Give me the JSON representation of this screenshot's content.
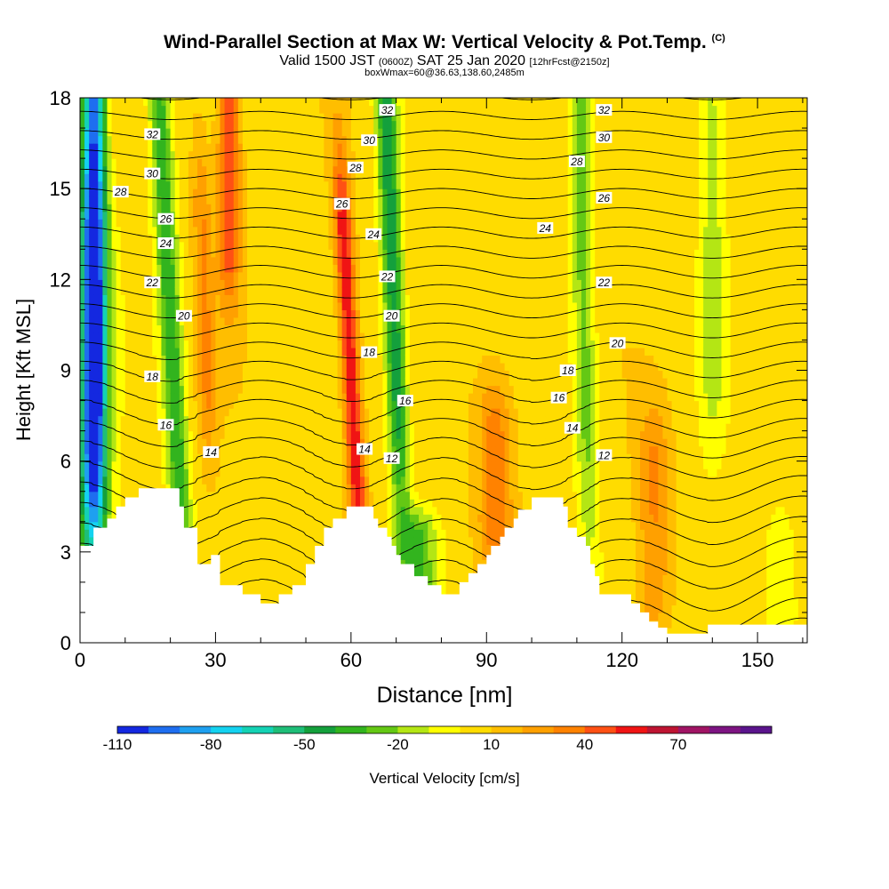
{
  "header": {
    "title_main": "Wind-Parallel Section at Max W: Vertical Velocity & Pot.Temp.",
    "title_copyright": "(C)",
    "valid_prefix": "Valid 1500 JST",
    "valid_utc": "(0600Z)",
    "valid_date": "SAT 25 Jan 2020",
    "valid_fcst": "[12hrFcst@2150z]",
    "box_info": "boxWmax=60@36.63,138.60,2485m"
  },
  "chart_data": {
    "type": "heatmap",
    "xlabel": "Distance [nm]",
    "ylabel": "Height [Kft MSL]",
    "xlim": [
      0,
      161
    ],
    "ylim": [
      0,
      18
    ],
    "x_ticks": [
      "0",
      "30",
      "60",
      "90",
      "120",
      "150"
    ],
    "y_ticks": [
      "0",
      "3",
      "6",
      "9",
      "12",
      "15",
      "18"
    ],
    "colorbar": {
      "label": "Vertical Velocity [cm/s]",
      "tick_labels": [
        "-110",
        "-80",
        "-50",
        "-20",
        "10",
        "40",
        "70"
      ],
      "levels": [
        -110,
        -100,
        -90,
        -80,
        -70,
        -60,
        -50,
        -40,
        -30,
        -20,
        -10,
        0,
        10,
        20,
        30,
        40,
        50,
        60,
        70,
        80,
        90
      ],
      "colors": [
        "#1428e0",
        "#1e6ef0",
        "#1ea0f0",
        "#14d2f0",
        "#14d2b4",
        "#1ebe78",
        "#14a03c",
        "#32b41e",
        "#64c814",
        "#b4e614",
        "#ffff00",
        "#ffdc00",
        "#ffbe00",
        "#ffa000",
        "#ff8200",
        "#ff5014",
        "#f01414",
        "#be1432",
        "#a01464",
        "#7d1482",
        "#5a148c"
      ]
    },
    "terrain_kft": [
      [
        0,
        3.2
      ],
      [
        2,
        3.2
      ],
      [
        3,
        3.8
      ],
      [
        5,
        3.8
      ],
      [
        6,
        4.1
      ],
      [
        7,
        4.1
      ],
      [
        8,
        4.5
      ],
      [
        9,
        4.5
      ],
      [
        10,
        4.8
      ],
      [
        12,
        4.8
      ],
      [
        13,
        5.1
      ],
      [
        20,
        5.1
      ],
      [
        22,
        4.5
      ],
      [
        23,
        3.8
      ],
      [
        25,
        3.8
      ],
      [
        26,
        2.6
      ],
      [
        28,
        2.6
      ],
      [
        29,
        2.9
      ],
      [
        30,
        2.9
      ],
      [
        31,
        1.9
      ],
      [
        35,
        1.9
      ],
      [
        36,
        1.6
      ],
      [
        39,
        1.6
      ],
      [
        40,
        1.3
      ],
      [
        43,
        1.3
      ],
      [
        44,
        1.6
      ],
      [
        46,
        1.6
      ],
      [
        47,
        1.9
      ],
      [
        49,
        1.9
      ],
      [
        50,
        2.6
      ],
      [
        51,
        2.6
      ],
      [
        52,
        3.2
      ],
      [
        53,
        3.2
      ],
      [
        54,
        3.8
      ],
      [
        55,
        3.8
      ],
      [
        56,
        4.1
      ],
      [
        58,
        4.1
      ],
      [
        59,
        4.5
      ],
      [
        64,
        4.5
      ],
      [
        65,
        4.1
      ],
      [
        66,
        3.8
      ],
      [
        68,
        3.5
      ],
      [
        69,
        3.2
      ],
      [
        70,
        2.9
      ],
      [
        71,
        2.6
      ],
      [
        73,
        2.6
      ],
      [
        74,
        2.2
      ],
      [
        76,
        2.2
      ],
      [
        77,
        1.9
      ],
      [
        79,
        1.9
      ],
      [
        80,
        1.6
      ],
      [
        83,
        1.6
      ],
      [
        84,
        2.0
      ],
      [
        86,
        2.3
      ],
      [
        88,
        2.6
      ],
      [
        90,
        2.9
      ],
      [
        91,
        3.2
      ],
      [
        93,
        3.5
      ],
      [
        94,
        3.8
      ],
      [
        96,
        4.1
      ],
      [
        97,
        4.4
      ],
      [
        100,
        4.8
      ],
      [
        106,
        4.8
      ],
      [
        107,
        4.5
      ],
      [
        108,
        3.8
      ],
      [
        110,
        3.5
      ],
      [
        112,
        3.2
      ],
      [
        113,
        2.6
      ],
      [
        114,
        2.2
      ],
      [
        115,
        1.6
      ],
      [
        120,
        1.6
      ],
      [
        122,
        1.3
      ],
      [
        124,
        1.0
      ],
      [
        126,
        0.7
      ],
      [
        128,
        0.5
      ],
      [
        130,
        0.3
      ],
      [
        138,
        0.3
      ],
      [
        139,
        0.6
      ],
      [
        161,
        0.6
      ]
    ],
    "w_features": [
      {
        "x": 3,
        "z0": 8,
        "z1": 18,
        "w": -100,
        "sx": 2.5,
        "sz": 5,
        "tilt": 0
      },
      {
        "x": 3,
        "z0": 5,
        "z1": 12,
        "w": -40,
        "sx": 4,
        "sz": 4,
        "tilt": 0
      },
      {
        "x": 22,
        "z0": 5,
        "z1": 18,
        "w": -45,
        "sx": 2.4,
        "sz": 6,
        "tilt": -0.35
      },
      {
        "x": 33,
        "z0": 14,
        "z1": 18,
        "w": 45,
        "sx": 2.5,
        "sz": 3,
        "tilt": 0
      },
      {
        "x": 28,
        "z0": 9,
        "z1": 14,
        "w": 25,
        "sx": 2.0,
        "sz": 3,
        "tilt": -0.2
      },
      {
        "x": 70,
        "z0": 9,
        "z1": 18,
        "w": -55,
        "sx": 2.3,
        "sz": 6,
        "tilt": -0.25
      },
      {
        "x": 61,
        "z0": 6,
        "z1": 13,
        "w": 55,
        "sx": 2.0,
        "sz": 3.5,
        "tilt": -0.35
      },
      {
        "x": 75,
        "z0": 2,
        "z1": 3.5,
        "w": -35,
        "sx": 4,
        "sz": 1,
        "tilt": 0
      },
      {
        "x": 112,
        "z0": 8,
        "z1": 18,
        "w": -30,
        "sx": 2.5,
        "sz": 6,
        "tilt": -0.15
      },
      {
        "x": 92,
        "z0": 4,
        "z1": 7,
        "w": 30,
        "sx": 4,
        "sz": 2,
        "tilt": 0
      },
      {
        "x": 127,
        "z0": 2,
        "z1": 6,
        "w": 25,
        "sx": 3.5,
        "sz": 2,
        "tilt": 0
      },
      {
        "x": 140,
        "z0": 10,
        "z1": 18,
        "w": -20,
        "sx": 3,
        "sz": 4,
        "tilt": 0
      },
      {
        "x": 155,
        "z0": 1,
        "z1": 3,
        "w": -15,
        "sx": 3,
        "sz": 1.5,
        "tilt": 0
      }
    ],
    "theta_contours": {
      "interval": 1,
      "labels": [
        {
          "text": "32",
          "x": 16,
          "z": 16.8
        },
        {
          "text": "30",
          "x": 16,
          "z": 15.5
        },
        {
          "text": "28",
          "x": 9,
          "z": 14.9
        },
        {
          "text": "26",
          "x": 19,
          "z": 14.0
        },
        {
          "text": "24",
          "x": 19,
          "z": 13.2
        },
        {
          "text": "22",
          "x": 16,
          "z": 11.9
        },
        {
          "text": "20",
          "x": 23,
          "z": 10.8
        },
        {
          "text": "18",
          "x": 16,
          "z": 8.8
        },
        {
          "text": "16",
          "x": 19,
          "z": 7.2
        },
        {
          "text": "14",
          "x": 29,
          "z": 6.3
        },
        {
          "text": "32",
          "x": 68,
          "z": 17.6
        },
        {
          "text": "30",
          "x": 64,
          "z": 16.6
        },
        {
          "text": "28",
          "x": 61,
          "z": 15.7
        },
        {
          "text": "26",
          "x": 58,
          "z": 14.5
        },
        {
          "text": "24",
          "x": 65,
          "z": 13.5
        },
        {
          "text": "22",
          "x": 68,
          "z": 12.1
        },
        {
          "text": "20",
          "x": 69,
          "z": 10.8
        },
        {
          "text": "18",
          "x": 64,
          "z": 9.6
        },
        {
          "text": "16",
          "x": 72,
          "z": 8.0
        },
        {
          "text": "14",
          "x": 63,
          "z": 6.4
        },
        {
          "text": "12",
          "x": 69,
          "z": 6.1
        },
        {
          "text": "32",
          "x": 116,
          "z": 17.6
        },
        {
          "text": "30",
          "x": 116,
          "z": 16.7
        },
        {
          "text": "28",
          "x": 110,
          "z": 15.9
        },
        {
          "text": "26",
          "x": 116,
          "z": 14.7
        },
        {
          "text": "24",
          "x": 103,
          "z": 13.7
        },
        {
          "text": "22",
          "x": 116,
          "z": 11.9
        },
        {
          "text": "20",
          "x": 119,
          "z": 9.9
        },
        {
          "text": "18",
          "x": 108,
          "z": 9.0
        },
        {
          "text": "16",
          "x": 106,
          "z": 8.1
        },
        {
          "text": "14",
          "x": 109,
          "z": 7.1
        },
        {
          "text": "12",
          "x": 116,
          "z": 6.2
        }
      ]
    }
  }
}
